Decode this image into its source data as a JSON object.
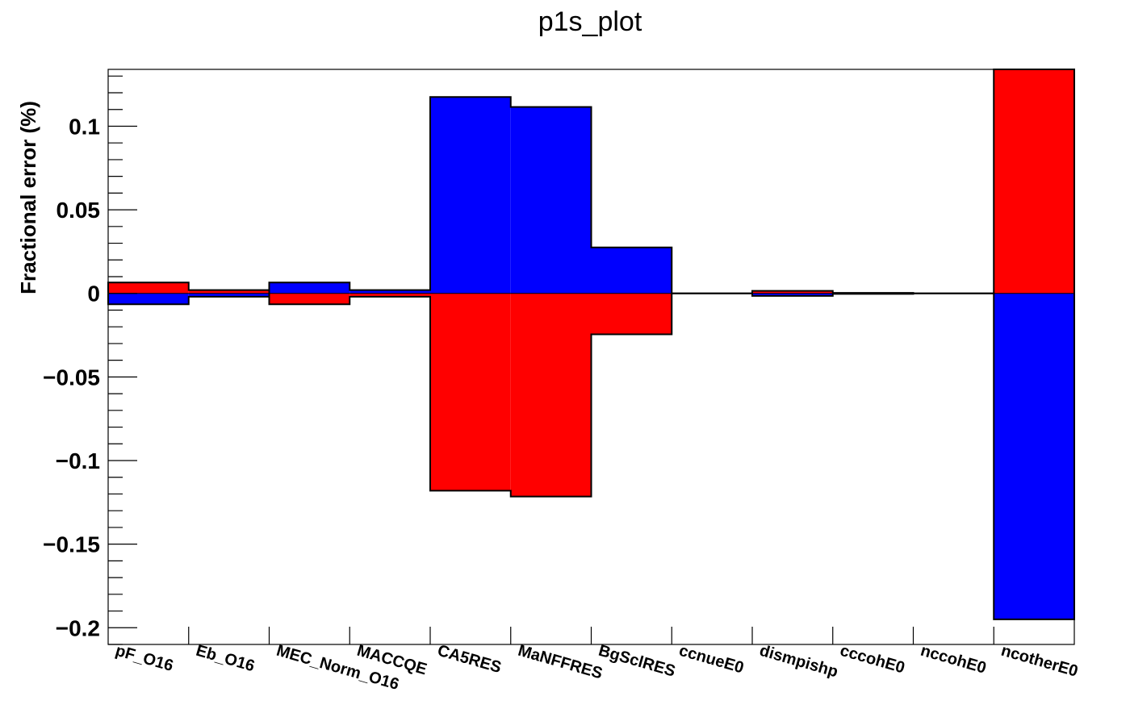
{
  "chart_data": {
    "type": "bar",
    "title": "p1s_plot",
    "ylabel": "Fractional error  (%)",
    "xlabel": "",
    "ylim": [
      -0.21,
      0.134
    ],
    "yticks": [
      {
        "value": 0.1,
        "label": "0.1"
      },
      {
        "value": 0.05,
        "label": "0.05"
      },
      {
        "value": 0,
        "label": "0"
      },
      {
        "value": -0.05,
        "label": "−0.05"
      },
      {
        "value": -0.1,
        "label": "−0.1"
      },
      {
        "value": -0.15,
        "label": "−0.15"
      },
      {
        "value": -0.2,
        "label": "−0.2"
      }
    ],
    "categories": [
      "pF_O16",
      "Eb_O16",
      "MEC_Norm_O16",
      "MACCQE",
      "CA5RES",
      "MaNFFRES",
      "BgSclRES",
      "ccnueE0",
      "dismpishp",
      "cccohE0",
      "nccohE0",
      "ncotherE0"
    ],
    "series": [
      {
        "color": "#ff0000",
        "values": [
          0.0065,
          0.002,
          -0.0065,
          -0.002,
          -0.118,
          -0.1215,
          -0.0245,
          0.0,
          0.0015,
          0.0003,
          0.0,
          0.134
        ]
      },
      {
        "color": "#0000ff",
        "values": [
          -0.0065,
          -0.002,
          0.0065,
          0.002,
          0.1175,
          0.1115,
          0.0275,
          0.0,
          -0.0015,
          -0.0003,
          0.0,
          -0.195
        ]
      }
    ],
    "grid": false
  }
}
